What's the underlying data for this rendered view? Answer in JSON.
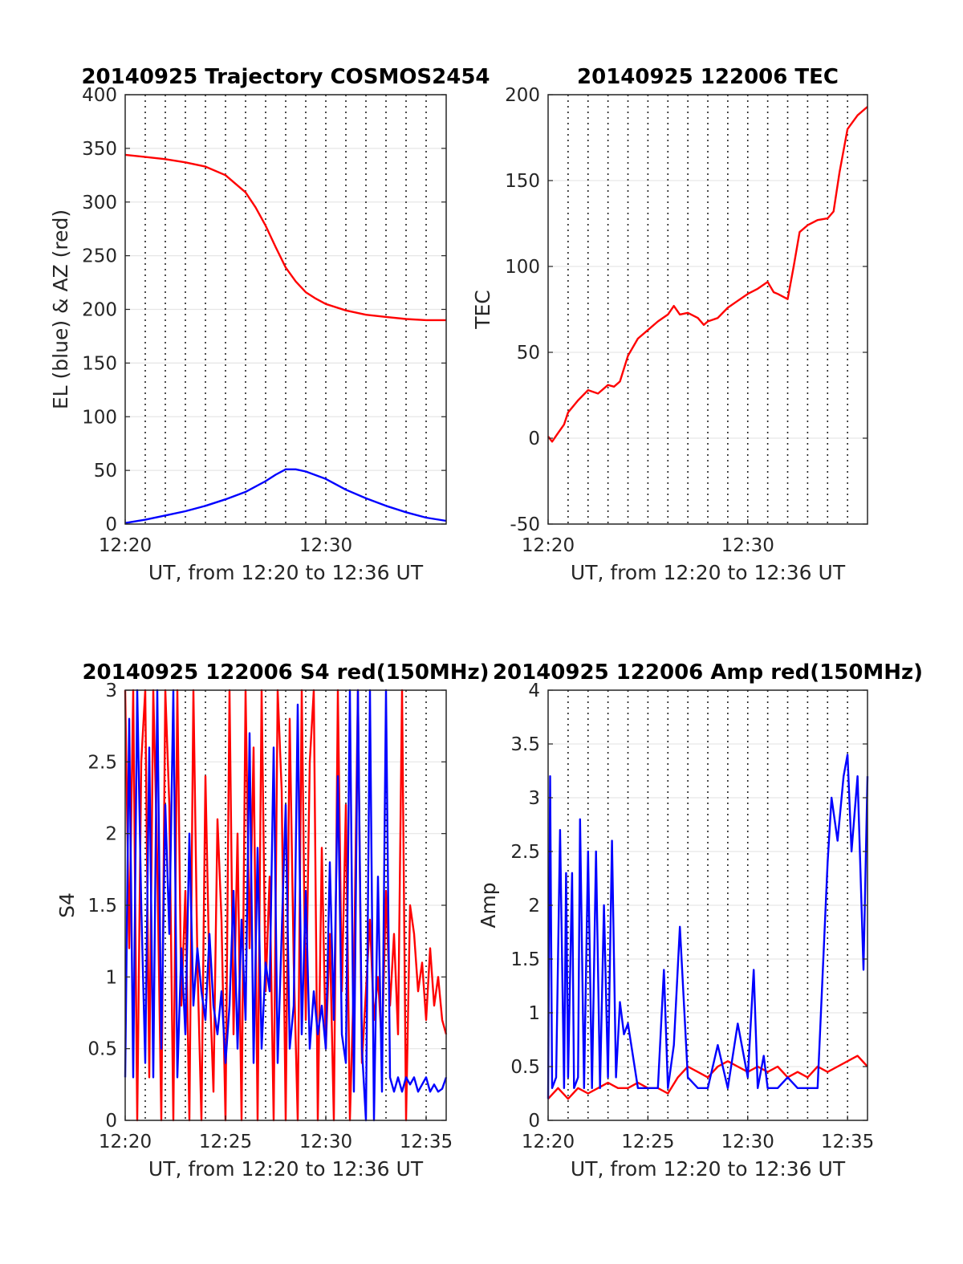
{
  "chart_data": [
    {
      "id": "trajectory",
      "type": "line",
      "title": "20140925 Trajectory COSMOS2454",
      "xlabel": "UT, from 12:20 to 12:36 UT",
      "ylabel": "EL (blue) & AZ (red)",
      "xlim": [
        0,
        16
      ],
      "ylim": [
        0,
        400
      ],
      "xticks": [
        0,
        10
      ],
      "xticklabels": [
        "12:20",
        "12:30"
      ],
      "yticks": [
        0,
        50,
        100,
        150,
        200,
        250,
        300,
        350,
        400
      ],
      "yticklabels": [
        "0",
        "50",
        "100",
        "150",
        "200",
        "250",
        "300",
        "350",
        "400"
      ],
      "grid": "dotted vertical lines every minute, light horizontal lines",
      "series": [
        {
          "color": "#ff0000",
          "x": [
            0,
            1,
            2,
            3,
            4,
            5,
            6,
            6.5,
            7,
            7.5,
            8,
            8.5,
            9,
            9.5,
            10,
            11,
            12,
            13,
            14,
            15,
            16
          ],
          "values": [
            344,
            342,
            340,
            337,
            333,
            325,
            309,
            295,
            278,
            258,
            239,
            226,
            216,
            210,
            205,
            199,
            195,
            193,
            191,
            190,
            190
          ]
        },
        {
          "color": "#0000ff",
          "x": [
            0,
            1,
            2,
            3,
            4,
            5,
            6,
            7,
            7.5,
            8,
            8.5,
            9,
            10,
            11,
            12,
            13,
            14,
            15,
            16
          ],
          "values": [
            1,
            4,
            8,
            12,
            17,
            23,
            30,
            40,
            46,
            51,
            51,
            49,
            42,
            32,
            24,
            17,
            11,
            6,
            3
          ]
        }
      ]
    },
    {
      "id": "tec",
      "type": "line",
      "title": "20140925 122006 TEC",
      "xlabel": "UT, from 12:20 to 12:36 UT",
      "ylabel": "TEC",
      "xlim": [
        0,
        16
      ],
      "ylim": [
        -50,
        200
      ],
      "xticks": [
        0,
        10
      ],
      "xticklabels": [
        "12:20",
        "12:30"
      ],
      "yticks": [
        -50,
        0,
        50,
        100,
        150,
        200
      ],
      "yticklabels": [
        "-50",
        "0",
        "50",
        "100",
        "150",
        "200"
      ],
      "grid": "dotted vertical lines every minute, light horizontal lines",
      "series": [
        {
          "color": "#ff0000",
          "x": [
            0,
            0.2,
            0.5,
            0.8,
            1,
            1.5,
            2,
            2.5,
            3,
            3.3,
            3.6,
            4,
            4.5,
            5,
            5.5,
            6,
            6.3,
            6.6,
            7,
            7.5,
            7.8,
            8,
            8.5,
            9,
            9.5,
            10,
            10.5,
            11,
            11.3,
            11.5,
            12,
            12.3,
            12.6,
            13,
            13.5,
            14,
            14.3,
            14.6,
            15,
            15.5,
            16
          ],
          "values": [
            1,
            -2,
            3,
            8,
            15,
            22,
            28,
            26,
            31,
            30,
            33,
            48,
            58,
            63,
            68,
            72,
            77,
            72,
            73,
            70,
            66,
            68,
            70,
            76,
            80,
            84,
            87,
            91,
            85,
            84,
            81,
            100,
            120,
            124,
            127,
            128,
            132,
            155,
            180,
            188,
            193
          ]
        }
      ]
    },
    {
      "id": "s4",
      "type": "line",
      "title": "20140925 122006 S4 red(150MHz)",
      "xlabel": "UT, from 12:20 to 12:36 UT",
      "ylabel": "S4",
      "xlim": [
        0,
        16
      ],
      "ylim": [
        0,
        3
      ],
      "xticks": [
        0,
        5,
        10,
        15
      ],
      "xticklabels": [
        "12:20",
        "12:25",
        "12:30",
        "12:35"
      ],
      "yticks": [
        0,
        0.5,
        1,
        1.5,
        2,
        2.5,
        3
      ],
      "yticklabels": [
        "0",
        "0.5",
        "1",
        "1.5",
        "2",
        "2.5",
        "3"
      ],
      "grid": "dotted vertical lines every minute, light horizontal lines",
      "series": [
        {
          "color": "#ff0000",
          "x": [
            0,
            0.2,
            0.4,
            0.6,
            0.8,
            1.0,
            1.2,
            1.4,
            1.6,
            1.8,
            2.0,
            2.2,
            2.4,
            2.6,
            2.8,
            3.0,
            3.2,
            3.4,
            3.6,
            3.8,
            4.0,
            4.2,
            4.4,
            4.6,
            4.8,
            5.0,
            5.2,
            5.4,
            5.6,
            5.8,
            6.0,
            6.2,
            6.4,
            6.6,
            6.8,
            7.0,
            7.2,
            7.4,
            7.6,
            7.8,
            8.0,
            8.2,
            8.4,
            8.6,
            8.8,
            9.0,
            9.2,
            9.4,
            9.6,
            9.8,
            10.0,
            10.2,
            10.4,
            10.6,
            10.8,
            11.0,
            11.2,
            11.4,
            11.6,
            11.8,
            12.0,
            12.2,
            12.4,
            12.6,
            12.8,
            13.0,
            13.2,
            13.4,
            13.6,
            13.8,
            14.0,
            14.2,
            14.4,
            14.6,
            14.8,
            15.0,
            15.2,
            15.4,
            15.6,
            15.8,
            16.0
          ],
          "values": [
            3,
            1.2,
            3,
            0,
            2.5,
            3,
            0.3,
            3,
            1.8,
            0,
            3,
            2.2,
            0,
            3,
            0.8,
            1.6,
            0,
            3,
            1.1,
            0,
            2.4,
            1.0,
            0.2,
            2.1,
            1.4,
            0,
            3,
            0.6,
            2.0,
            0,
            3,
            1.2,
            2.6,
            0,
            3,
            0.9,
            1.7,
            0,
            3,
            2.3,
            0,
            2.8,
            1.1,
            0,
            3,
            0.7,
            2.5,
            3,
            0,
            1.9,
            0.5,
            1.3,
            0,
            3,
            0.9,
            2.2,
            0,
            1.0,
            3,
            0.4,
            0.9,
            1.4,
            0.7,
            1.0,
            0.5,
            1.6,
            0.8,
            1.3,
            0.6,
            3,
            0,
            1.5,
            1.3,
            0.9,
            1.1,
            0.7,
            1.2,
            0.8,
            1.0,
            0.7,
            0.6
          ]
        },
        {
          "color": "#0000ff",
          "x": [
            0,
            0.2,
            0.4,
            0.6,
            0.8,
            1.0,
            1.2,
            1.4,
            1.6,
            1.8,
            2.0,
            2.2,
            2.4,
            2.6,
            2.8,
            3.0,
            3.2,
            3.4,
            3.6,
            3.8,
            4.0,
            4.2,
            4.4,
            4.6,
            4.8,
            5.0,
            5.2,
            5.4,
            5.6,
            5.8,
            6.0,
            6.2,
            6.4,
            6.6,
            6.8,
            7.0,
            7.2,
            7.4,
            7.6,
            7.8,
            8.0,
            8.2,
            8.4,
            8.6,
            8.8,
            9.0,
            9.2,
            9.4,
            9.6,
            9.8,
            10.0,
            10.2,
            10.4,
            10.6,
            10.8,
            11.0,
            11.2,
            11.4,
            11.6,
            11.8,
            12.0,
            12.2,
            12.4,
            12.6,
            12.8,
            13.0,
            13.2,
            13.4,
            13.6,
            13.8,
            14.0,
            14.2,
            14.4,
            14.6,
            14.8,
            15.0,
            15.2,
            15.4,
            15.6,
            15.8,
            16.0
          ],
          "values": [
            0.3,
            2.8,
            0.3,
            3,
            1.5,
            0.4,
            2.6,
            0.3,
            3,
            0.5,
            2.2,
            1.3,
            3,
            0.3,
            1.2,
            0.6,
            2.0,
            0.8,
            1.2,
            0.9,
            0.7,
            1.3,
            0.8,
            0.6,
            0.9,
            0.4,
            0.8,
            1.6,
            0.5,
            1.4,
            0.7,
            2.7,
            0.4,
            1.9,
            0.5,
            1.1,
            0.9,
            2.6,
            0.4,
            1.3,
            2.2,
            0.5,
            0.8,
            2.9,
            0.6,
            1.6,
            0.5,
            0.9,
            0.6,
            0.8,
            0.5,
            1.8,
            0.7,
            2.4,
            0.6,
            0.4,
            3,
            0.2,
            3,
            0.5,
            0,
            3,
            0,
            1.7,
            0.2,
            3,
            0.3,
            0.2,
            0.3,
            0.2,
            0.3,
            0.25,
            0.3,
            0.2,
            0.25,
            0.3,
            0.2,
            0.25,
            0.2,
            0.22,
            0.3
          ]
        }
      ]
    },
    {
      "id": "amp",
      "type": "line",
      "title": "20140925 122006 Amp red(150MHz)",
      "xlabel": "UT, from 12:20 to 12:36 UT",
      "ylabel": "Amp",
      "xlim": [
        0,
        16
      ],
      "ylim": [
        0,
        4
      ],
      "xticks": [
        0,
        5,
        10,
        15
      ],
      "xticklabels": [
        "12:20",
        "12:25",
        "12:30",
        "12:35"
      ],
      "yticks": [
        0,
        0.5,
        1,
        1.5,
        2,
        2.5,
        3,
        3.5,
        4
      ],
      "yticklabels": [
        "0",
        "0.5",
        "1",
        "1.5",
        "2",
        "2.5",
        "3",
        "3.5",
        "4"
      ],
      "grid": "dotted vertical lines every minute, light horizontal lines",
      "series": [
        {
          "color": "#ff0000",
          "x": [
            0,
            0.5,
            1,
            1.5,
            2,
            2.5,
            3,
            3.5,
            4,
            4.5,
            5,
            5.5,
            6,
            6.5,
            7,
            7.5,
            8,
            8.5,
            9,
            9.5,
            10,
            10.5,
            11,
            11.5,
            12,
            12.5,
            13,
            13.5,
            14,
            14.5,
            15,
            15.5,
            16
          ],
          "values": [
            0.2,
            0.3,
            0.2,
            0.3,
            0.25,
            0.3,
            0.35,
            0.3,
            0.3,
            0.35,
            0.3,
            0.3,
            0.25,
            0.4,
            0.5,
            0.45,
            0.4,
            0.5,
            0.55,
            0.5,
            0.45,
            0.5,
            0.45,
            0.5,
            0.4,
            0.45,
            0.4,
            0.5,
            0.45,
            0.5,
            0.55,
            0.6,
            0.5
          ]
        },
        {
          "color": "#0000ff",
          "x": [
            0,
            0.1,
            0.2,
            0.4,
            0.6,
            0.8,
            0.9,
            1.0,
            1.2,
            1.3,
            1.5,
            1.6,
            1.8,
            2.0,
            2.2,
            2.4,
            2.6,
            2.8,
            3.0,
            3.2,
            3.4,
            3.6,
            3.8,
            4.0,
            4.5,
            5.0,
            5.5,
            5.8,
            6.0,
            6.3,
            6.6,
            7.0,
            7.5,
            8.0,
            8.5,
            9.0,
            9.5,
            10.0,
            10.3,
            10.5,
            10.8,
            11.0,
            11.5,
            12.0,
            12.5,
            13.0,
            13.5,
            14.0,
            14.2,
            14.5,
            14.8,
            15.0,
            15.2,
            15.5,
            15.8,
            16.0
          ],
          "values": [
            0.2,
            3.2,
            0.3,
            0.4,
            2.7,
            0.3,
            2.3,
            0.4,
            2.3,
            0.3,
            0.4,
            2.8,
            0.3,
            2.5,
            0.3,
            2.5,
            0.3,
            2.0,
            0.4,
            2.6,
            0.4,
            1.1,
            0.8,
            0.9,
            0.3,
            0.3,
            0.3,
            1.4,
            0.3,
            0.7,
            1.8,
            0.4,
            0.3,
            0.3,
            0.7,
            0.3,
            0.9,
            0.4,
            1.4,
            0.3,
            0.6,
            0.3,
            0.3,
            0.4,
            0.3,
            0.3,
            0.3,
            2.4,
            3.0,
            2.6,
            3.2,
            3.4,
            2.5,
            3.2,
            1.4,
            3.2
          ]
        }
      ]
    }
  ]
}
